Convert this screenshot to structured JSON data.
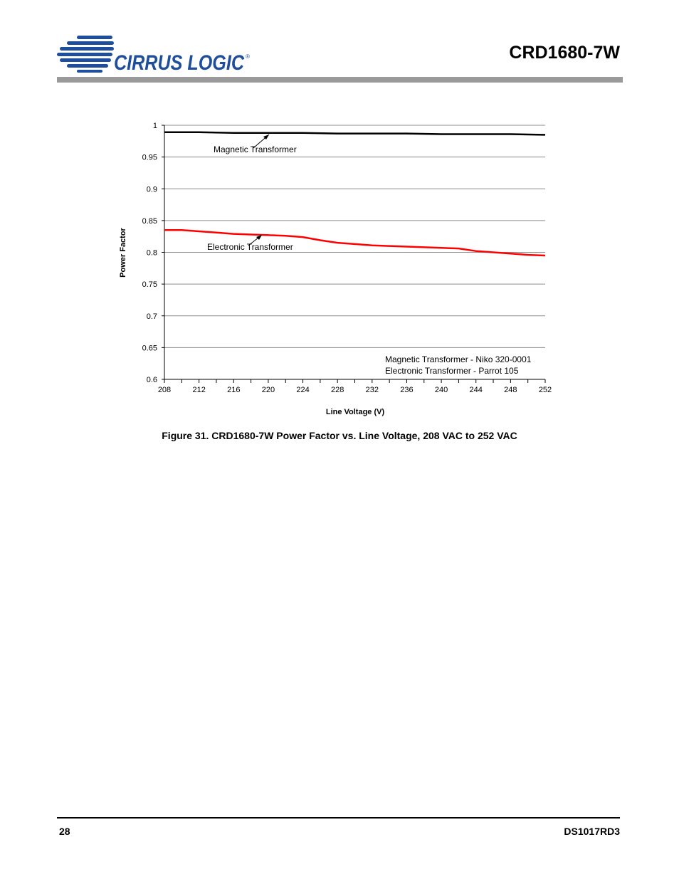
{
  "header": {
    "brand": "CIRRUS LOGIC",
    "registered_mark": "®",
    "doc_title": "CRD1680-7W"
  },
  "figure": {
    "caption": "Figure 31.  CRD1680-7W Power Factor vs. Line Voltage, 208 VAC to 252 VAC"
  },
  "chart_data": {
    "type": "line",
    "title": "",
    "xlabel": "Line Voltage (V)",
    "ylabel": "Power Factor",
    "xlim": [
      208,
      252
    ],
    "ylim": [
      0.6,
      1
    ],
    "xticks": [
      208,
      212,
      216,
      220,
      224,
      228,
      232,
      236,
      240,
      244,
      248,
      252
    ],
    "yticks": [
      "0.6",
      "0.65",
      "0.7",
      "0.75",
      "0.8",
      "0.85",
      "0.9",
      "0.95",
      "1"
    ],
    "grid": "horizontal",
    "series": [
      {
        "name": "Magnetic Transformer",
        "color": "#000000",
        "x": [
          208,
          212,
          216,
          220,
          224,
          228,
          232,
          236,
          240,
          244,
          248,
          252
        ],
        "y": [
          0.989,
          0.989,
          0.988,
          0.988,
          0.988,
          0.987,
          0.987,
          0.987,
          0.986,
          0.986,
          0.986,
          0.985
        ]
      },
      {
        "name": "Electronic Transformer",
        "color": "#ff0000",
        "x": [
          208,
          210,
          212,
          214,
          216,
          218,
          220,
          222,
          224,
          226,
          228,
          230,
          232,
          234,
          236,
          238,
          240,
          242,
          244,
          246,
          248,
          250,
          252
        ],
        "y": [
          0.835,
          0.835,
          0.833,
          0.831,
          0.829,
          0.828,
          0.827,
          0.826,
          0.824,
          0.819,
          0.815,
          0.813,
          0.811,
          0.81,
          0.809,
          0.808,
          0.807,
          0.806,
          0.802,
          0.8,
          0.798,
          0.796,
          0.795
        ]
      }
    ],
    "annotations": [
      {
        "text": "Magnetic Transformer",
        "x": 218,
        "y": 0.988
      },
      {
        "text": "Electronic Transformer",
        "x": 219,
        "y": 0.827
      }
    ],
    "notes": [
      "Magnetic Transformer -  Niko 320-0001",
      "Electronic Transformer - Parrot 105"
    ]
  },
  "footer": {
    "page_number": "28",
    "doc_code": "DS1017RD3"
  },
  "colors": {
    "logo_blue": "#1f4e9c",
    "header_rule": "#9a9a9a",
    "grid": "#8c8c8c"
  }
}
